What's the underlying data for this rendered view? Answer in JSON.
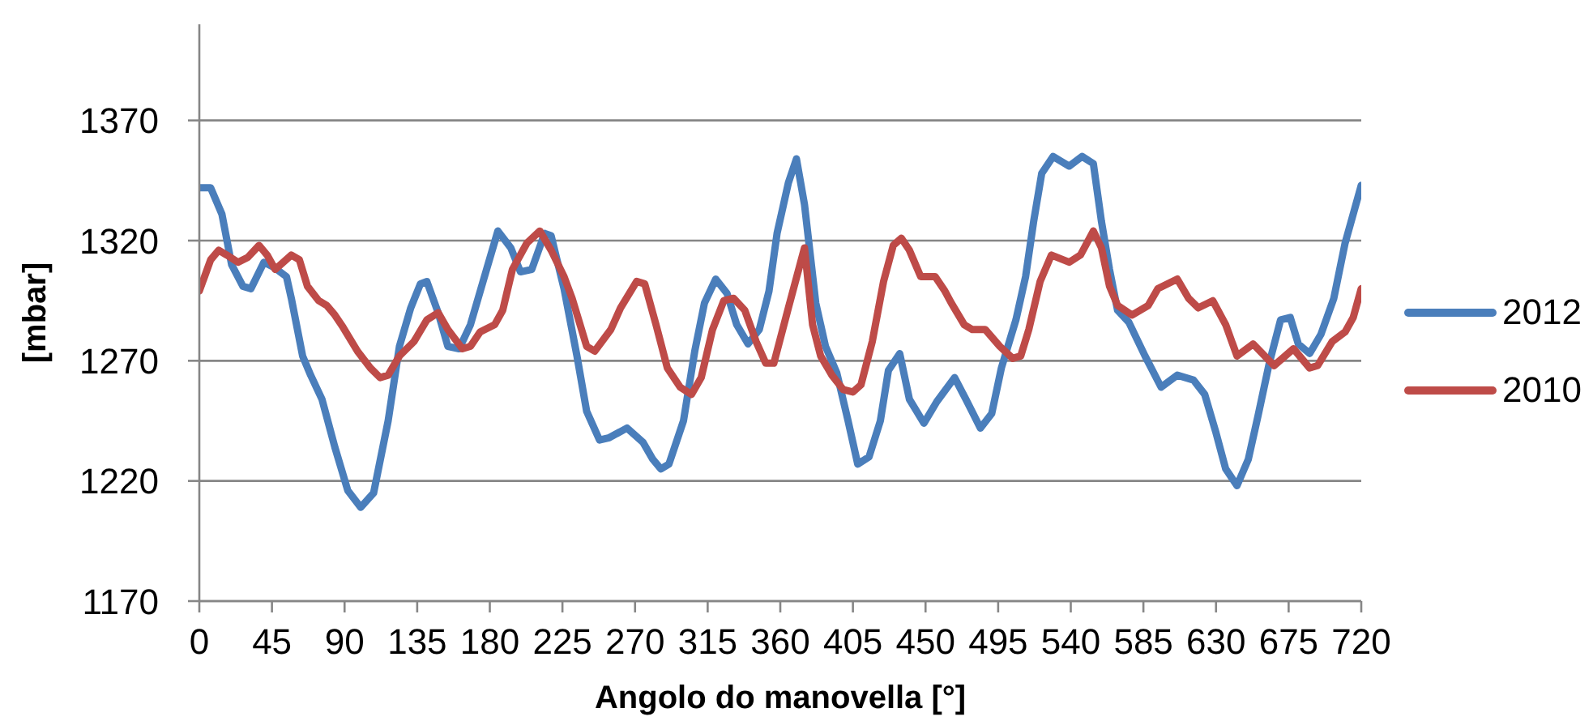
{
  "chart_data": {
    "type": "line",
    "xlabel": "Angolo do manovella [°]",
    "ylabel": "[mbar]",
    "xlim": [
      0,
      720
    ],
    "xticks": [
      0,
      45,
      90,
      135,
      180,
      225,
      270,
      315,
      360,
      405,
      450,
      495,
      540,
      585,
      630,
      675,
      720
    ],
    "ylim": [
      1170,
      1410
    ],
    "yticks": [
      1170,
      1220,
      1270,
      1320,
      1370
    ],
    "grid": "y",
    "legend": "right",
    "series": [
      {
        "name": "2012",
        "color": "#4a7ebb",
        "x": [
          0,
          7,
          14,
          20,
          27,
          32,
          40,
          46,
          54,
          57,
          64,
          69,
          76,
          84,
          92,
          100,
          108,
          117,
          124,
          131,
          137,
          141,
          148,
          154,
          161,
          168,
          178,
          185,
          193,
          199,
          206,
          214,
          218,
          226,
          234,
          240,
          248,
          254,
          265,
          275,
          281,
          286,
          291,
          300,
          307,
          313,
          320,
          327,
          333,
          340,
          347,
          353,
          358,
          365,
          370,
          375,
          382,
          388,
          395,
          402,
          408,
          415,
          422,
          427,
          434,
          440,
          449,
          457,
          468,
          475,
          484,
          491,
          497,
          506,
          512,
          517,
          522,
          529,
          539,
          547,
          554,
          559,
          564,
          569,
          576,
          586,
          596,
          606,
          616,
          623,
          630,
          636,
          643,
          650,
          656,
          663,
          670,
          676,
          681,
          688,
          695,
          703,
          710,
          720
        ],
        "values": [
          1342,
          1342,
          1331,
          1310,
          1301,
          1300,
          1311,
          1309,
          1305,
          1296,
          1272,
          1264,
          1254,
          1234,
          1216,
          1209,
          1215,
          1245,
          1276,
          1292,
          1302,
          1303,
          1290,
          1276,
          1275,
          1285,
          1308,
          1324,
          1317,
          1307,
          1308,
          1323,
          1322,
          1300,
          1272,
          1249,
          1237,
          1238,
          1242,
          1236,
          1229,
          1225,
          1227,
          1245,
          1274,
          1294,
          1304,
          1298,
          1285,
          1277,
          1283,
          1299,
          1323,
          1344,
          1354,
          1335,
          1294,
          1276,
          1265,
          1245,
          1227,
          1230,
          1245,
          1266,
          1273,
          1254,
          1244,
          1253,
          1263,
          1254,
          1242,
          1248,
          1267,
          1287,
          1305,
          1328,
          1348,
          1355,
          1351,
          1355,
          1352,
          1328,
          1308,
          1291,
          1286,
          1272,
          1259,
          1264,
          1262,
          1256,
          1240,
          1225,
          1218,
          1229,
          1247,
          1269,
          1287,
          1288,
          1277,
          1273,
          1281,
          1296,
          1319,
          1343
        ]
      },
      {
        "name": "2010",
        "color": "#be4b48",
        "x": [
          0,
          7,
          12,
          17,
          24,
          30,
          37,
          42,
          47,
          57,
          62,
          67,
          74,
          79,
          84,
          89,
          98,
          106,
          112,
          117,
          124,
          133,
          141,
          148,
          154,
          163,
          168,
          174,
          183,
          188,
          194,
          203,
          211,
          218,
          226,
          231,
          240,
          245,
          255,
          261,
          271,
          276,
          283,
          290,
          298,
          305,
          311,
          318,
          325,
          331,
          338,
          345,
          351,
          356,
          365,
          375,
          380,
          385,
          392,
          399,
          405,
          410,
          417,
          424,
          430,
          435,
          440,
          447,
          456,
          462,
          466,
          474,
          479,
          487,
          496,
          504,
          509,
          514,
          521,
          528,
          539,
          546,
          554,
          559,
          564,
          569,
          578,
          588,
          594,
          606,
          613,
          619,
          628,
          636,
          643,
          653,
          666,
          678,
          688,
          693,
          702,
          710,
          715,
          720
        ],
        "values": [
          1299,
          1312,
          1316,
          1314,
          1311,
          1313,
          1318,
          1314,
          1308,
          1314,
          1312,
          1301,
          1295,
          1293,
          1289,
          1284,
          1274,
          1267,
          1263,
          1264,
          1272,
          1278,
          1287,
          1290,
          1283,
          1275,
          1276,
          1282,
          1285,
          1291,
          1308,
          1319,
          1324,
          1316,
          1305,
          1296,
          1276,
          1274,
          1283,
          1292,
          1303,
          1302,
          1285,
          1267,
          1259,
          1256,
          1263,
          1283,
          1295,
          1296,
          1291,
          1278,
          1269,
          1269,
          1292,
          1317,
          1285,
          1272,
          1264,
          1258,
          1257,
          1260,
          1278,
          1303,
          1318,
          1321,
          1316,
          1305,
          1305,
          1299,
          1294,
          1285,
          1283,
          1283,
          1276,
          1271,
          1272,
          1283,
          1303,
          1314,
          1311,
          1314,
          1324,
          1317,
          1301,
          1293,
          1289,
          1293,
          1300,
          1304,
          1296,
          1292,
          1295,
          1285,
          1272,
          1277,
          1268,
          1275,
          1267,
          1268,
          1278,
          1282,
          1288,
          1300
        ]
      }
    ]
  }
}
